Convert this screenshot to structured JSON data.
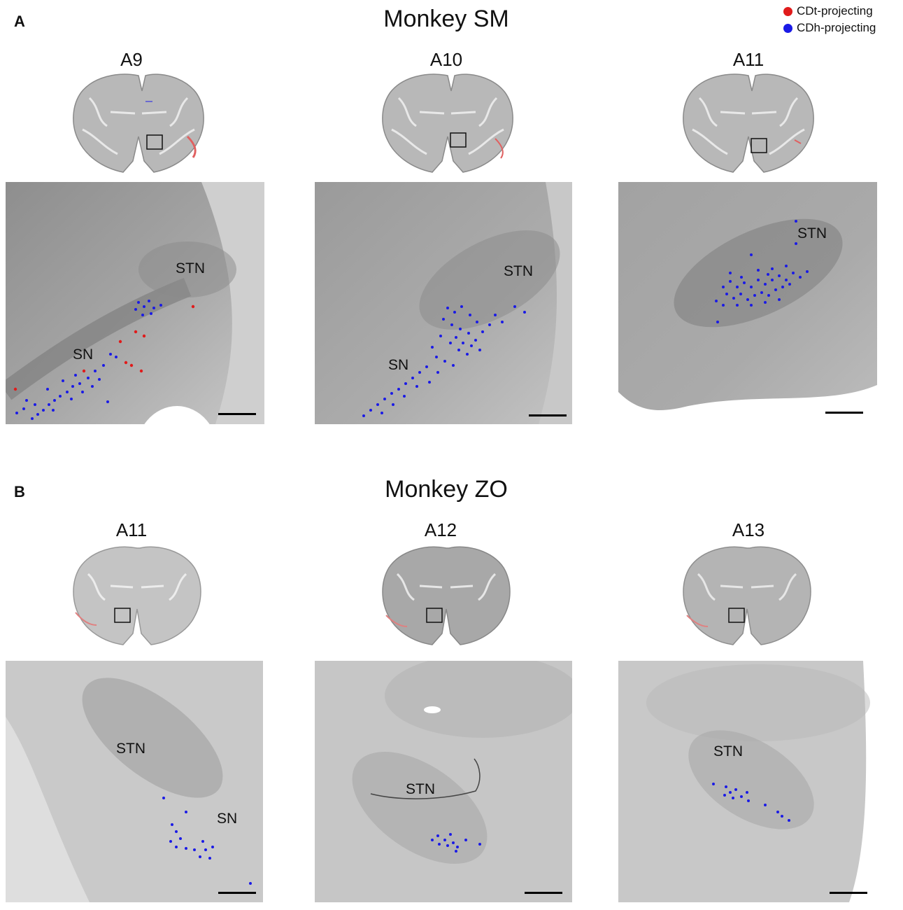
{
  "colors": {
    "cdt": "#e01b1b",
    "cdh": "#1a1ae6"
  },
  "legend": {
    "cdt_label": "CDt-projecting",
    "cdh_label": "CDh-projecting"
  },
  "panel_a": {
    "letter": "A",
    "title": "Monkey SM",
    "sections": [
      {
        "label": "A9",
        "regions": [
          "STN",
          "SN"
        ]
      },
      {
        "label": "A10",
        "regions": [
          "STN",
          "SN"
        ]
      },
      {
        "label": "A11",
        "regions": [
          "STN"
        ]
      }
    ]
  },
  "panel_b": {
    "letter": "B",
    "title": "Monkey ZO",
    "sections": [
      {
        "label": "A11",
        "regions": [
          "STN",
          "SN"
        ]
      },
      {
        "label": "A12",
        "regions": [
          "STN"
        ]
      },
      {
        "label": "A13",
        "regions": [
          "STN"
        ]
      }
    ]
  }
}
